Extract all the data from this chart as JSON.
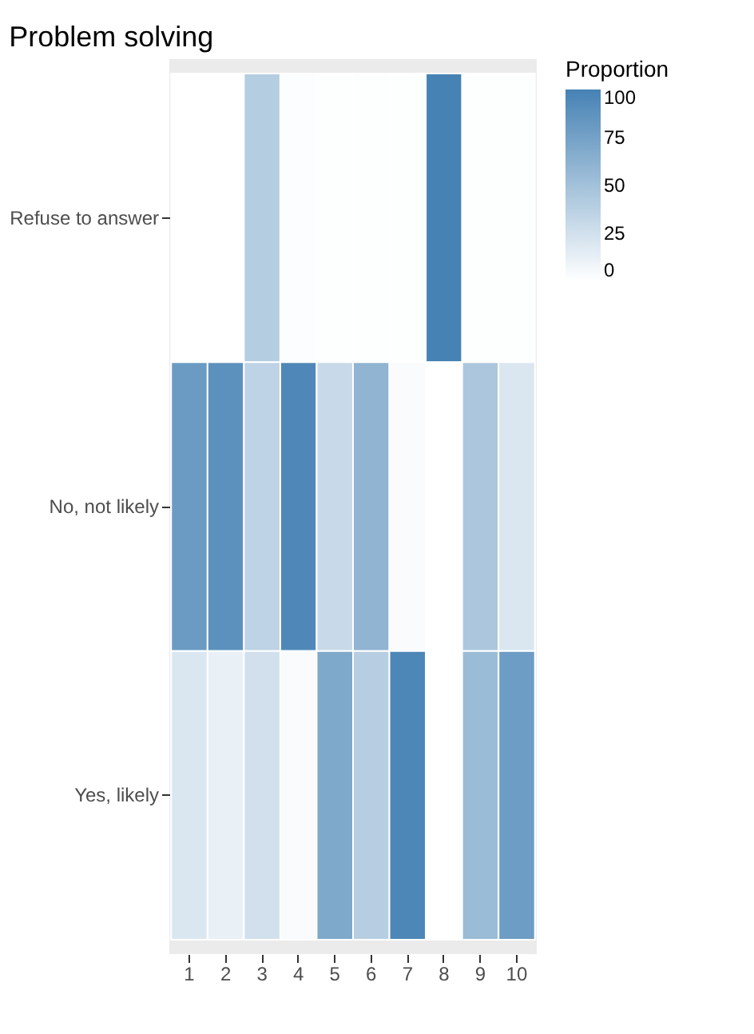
{
  "chart_data": {
    "type": "heatmap",
    "title": "Problem solving",
    "legend_title": "Proportion",
    "categories": [
      "1",
      "2",
      "3",
      "4",
      "5",
      "6",
      "7",
      "8",
      "9",
      "10"
    ],
    "y_categories": [
      "Refuse to answer",
      "No, not likely",
      "Yes, likely"
    ],
    "cells": [
      [
        0,
        0,
        40,
        2,
        1,
        1,
        1,
        100,
        1,
        1
      ],
      [
        80,
        88,
        35,
        95,
        30,
        60,
        3,
        0,
        45,
        20
      ],
      [
        20,
        12,
        25,
        3,
        69,
        39,
        96,
        0,
        54,
        79
      ]
    ],
    "clim": [
      0,
      100
    ],
    "cticks": [
      0,
      25,
      50,
      75,
      100
    ],
    "colors": [
      "#ffffff",
      "#4682b4"
    ]
  }
}
